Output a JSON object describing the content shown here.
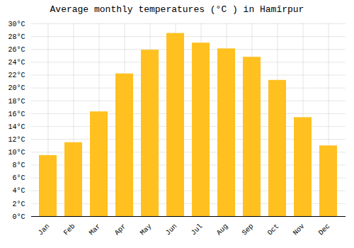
{
  "chart_data": {
    "type": "bar",
    "title": "Average monthly temperatures (°C ) in Hamīrpur",
    "categories": [
      "Jan",
      "Feb",
      "Mar",
      "Apr",
      "May",
      "Jun",
      "Jul",
      "Aug",
      "Sep",
      "Oct",
      "Nov",
      "Dec"
    ],
    "values": [
      9.5,
      11.5,
      16.3,
      22.2,
      25.9,
      28.5,
      27.0,
      26.1,
      24.8,
      21.2,
      15.4,
      11.0
    ],
    "color": "#FFC020",
    "ylim": [
      0,
      30
    ],
    "yticks": [
      {
        "value": 0,
        "label": "0°C"
      },
      {
        "value": 2,
        "label": "2°C"
      },
      {
        "value": 4,
        "label": "4°C"
      },
      {
        "value": 6,
        "label": "6°C"
      },
      {
        "value": 8,
        "label": "8°C"
      },
      {
        "value": 10,
        "label": "10°C"
      },
      {
        "value": 12,
        "label": "12°C"
      },
      {
        "value": 14,
        "label": "14°C"
      },
      {
        "value": 16,
        "label": "16°C"
      },
      {
        "value": 18,
        "label": "18°C"
      },
      {
        "value": 20,
        "label": "20°C"
      },
      {
        "value": 22,
        "label": "22°C"
      },
      {
        "value": 24,
        "label": "24°C"
      },
      {
        "value": 26,
        "label": "26°C"
      },
      {
        "value": 28,
        "label": "28°C"
      },
      {
        "value": 30,
        "label": "30°C"
      }
    ],
    "grid": true
  }
}
